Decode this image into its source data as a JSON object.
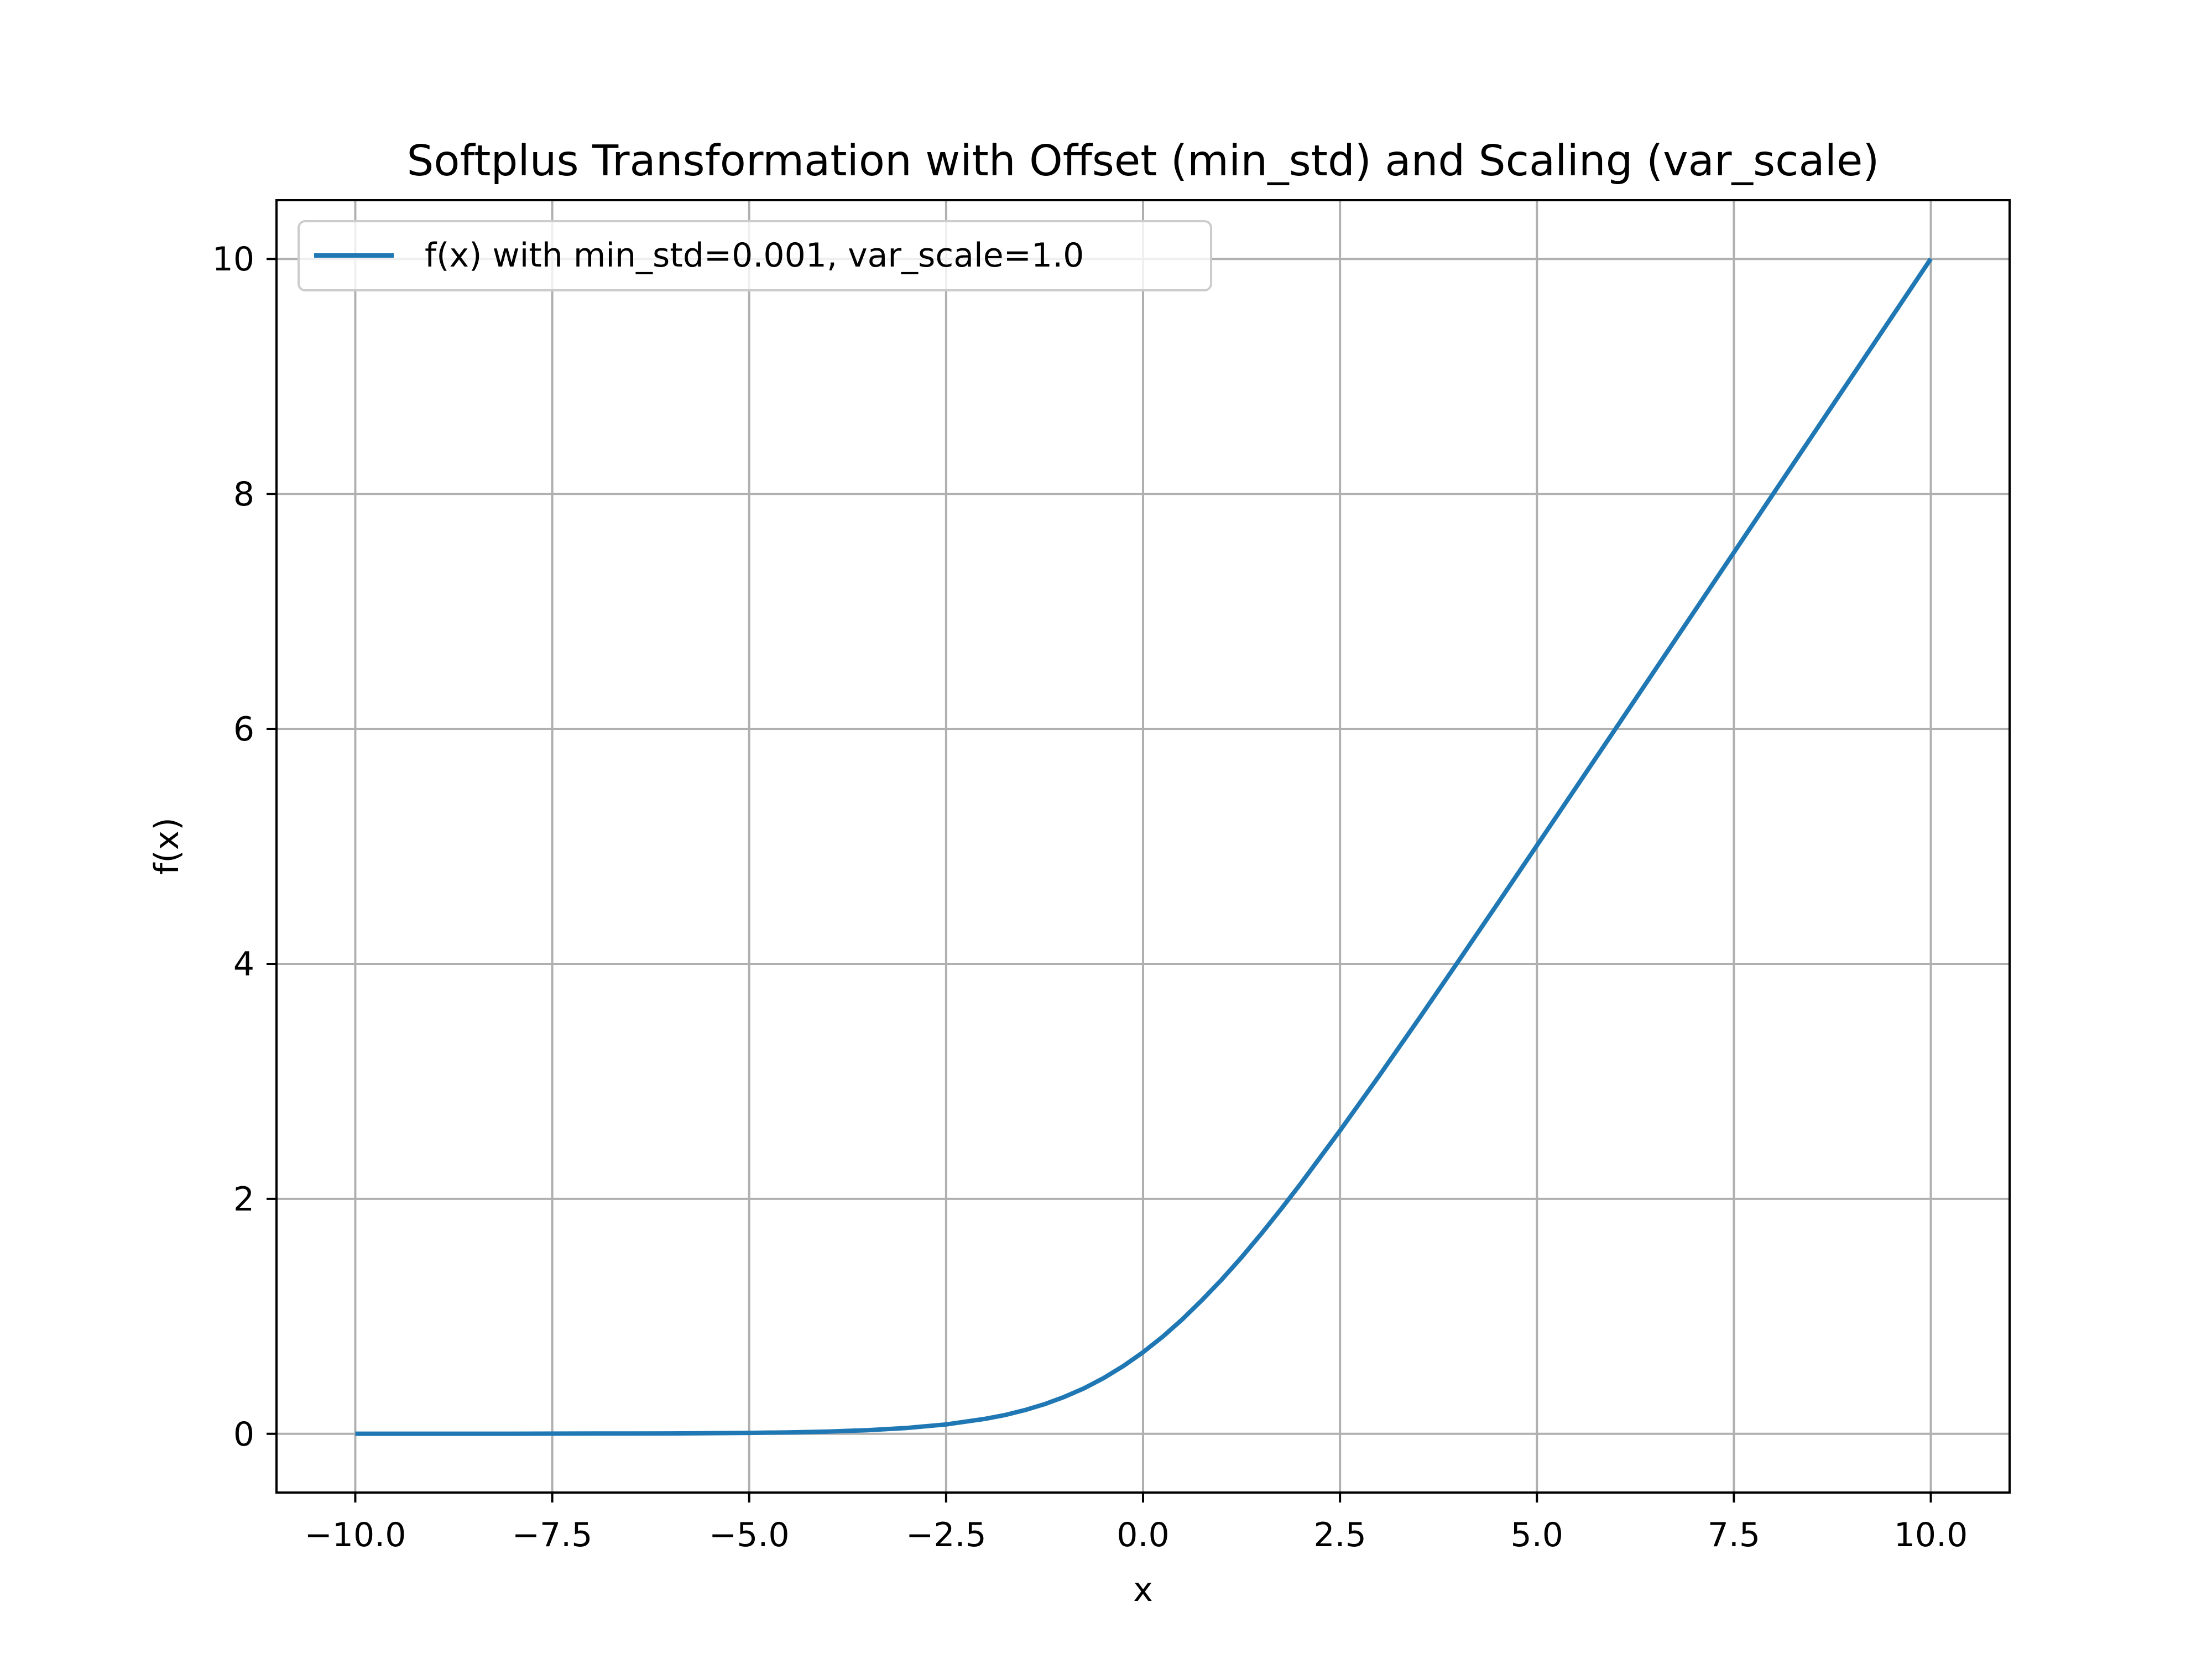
{
  "chart_data": {
    "type": "line",
    "title": "Softplus Transformation with Offset (min_std) and Scaling (var_scale)",
    "xlabel": "x",
    "ylabel": "f(x)",
    "xlim": [
      -11.0,
      11.0
    ],
    "ylim": [
      -0.5,
      10.5
    ],
    "xticks": [
      -10.0,
      -7.5,
      -5.0,
      -2.5,
      0.0,
      2.5,
      5.0,
      7.5,
      10.0
    ],
    "xtick_labels": [
      "−10.0",
      "−7.5",
      "−5.0",
      "−2.5",
      "0.0",
      "2.5",
      "5.0",
      "7.5",
      "10.0"
    ],
    "yticks": [
      0,
      2,
      4,
      6,
      8,
      10
    ],
    "ytick_labels": [
      "0",
      "2",
      "4",
      "6",
      "8",
      "10"
    ],
    "grid": true,
    "legend_position": "top-left",
    "series": [
      {
        "name": "f(x) with min_std=0.001, var_scale=1.0",
        "color": "#1f77b4",
        "x": [
          -10.0,
          -9.0,
          -8.0,
          -7.0,
          -6.0,
          -5.0,
          -4.5,
          -4.0,
          -3.5,
          -3.0,
          -2.5,
          -2.0,
          -1.75,
          -1.5,
          -1.25,
          -1.0,
          -0.75,
          -0.5,
          -0.25,
          0.0,
          0.25,
          0.5,
          0.75,
          1.0,
          1.25,
          1.5,
          1.75,
          2.0,
          2.5,
          3.0,
          3.5,
          4.0,
          4.5,
          5.0,
          6.0,
          7.0,
          8.0,
          9.0,
          10.0
        ],
        "y": [
          0.001,
          0.001,
          0.001,
          0.002,
          0.003,
          0.008,
          0.012,
          0.019,
          0.031,
          0.05,
          0.08,
          0.128,
          0.16,
          0.202,
          0.252,
          0.314,
          0.387,
          0.475,
          0.577,
          0.694,
          0.827,
          0.975,
          1.139,
          1.314,
          1.502,
          1.702,
          1.911,
          2.128,
          2.58,
          3.05,
          3.531,
          4.019,
          4.512,
          5.008,
          6.003,
          7.002,
          8.001,
          9.001,
          10.001
        ]
      }
    ]
  }
}
